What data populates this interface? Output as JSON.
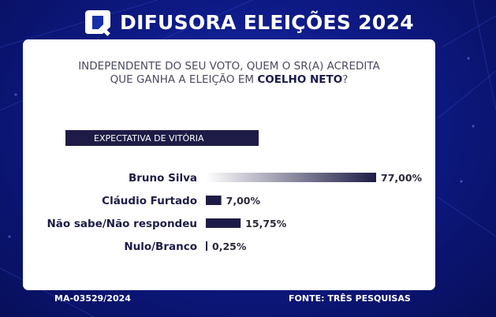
{
  "header": {
    "title": "DIFUSORA ELEIÇÕES 2024",
    "logo": "difusora-logo-icon"
  },
  "question": {
    "line1": "INDEPENDENTE DO SEU VOTO, QUEM O SR(A) ACREDITA",
    "line2_prefix": "QUE GANHA A ELEIÇÃO EM ",
    "line2_city": "COELHO NETO",
    "line2_suffix": "?"
  },
  "section": {
    "label": "EXPECTATIVA DE VITÓRIA"
  },
  "chart_data": {
    "type": "bar",
    "orientation": "horizontal",
    "categories": [
      "Bruno Silva",
      "Cláudio Furtado",
      "Não sabe/Não respondeu",
      "Nulo/Branco"
    ],
    "values": [
      77.0,
      7.0,
      15.75,
      0.25
    ],
    "value_labels": [
      "77,00%",
      "7,00%",
      "15,75%",
      "0,25%"
    ],
    "unit": "%",
    "xlim": [
      0,
      77
    ],
    "bar_color": "#1e1c46",
    "grid": false,
    "legend": "none"
  },
  "footer": {
    "code": "MA-03529/2024",
    "source": "FONTE: TRÊS PESQUISAS"
  }
}
